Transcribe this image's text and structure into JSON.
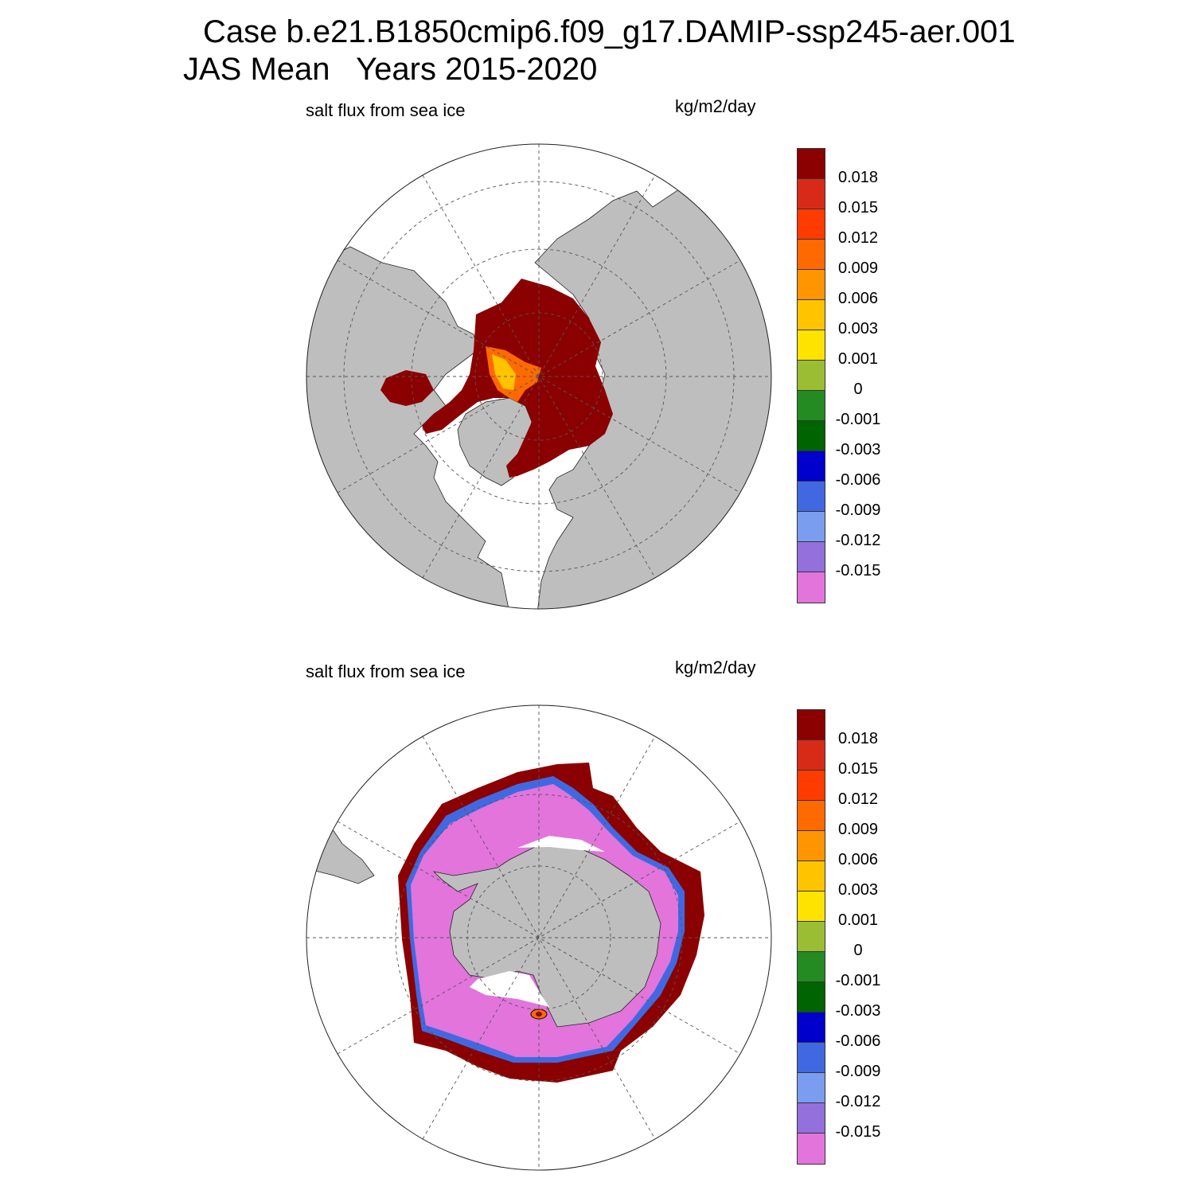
{
  "figure": {
    "title_line1": "Case b.e21.B1850cmip6.f09_g17.DAMIP-ssp245-aer.001",
    "title_line2": "JAS Mean   Years 2015-2020"
  },
  "panels": [
    {
      "id": "north",
      "title": "salt flux from sea ice",
      "units": "kg/m2/day",
      "hemisphere": "north"
    },
    {
      "id": "south",
      "title": "salt flux from sea ice",
      "units": "kg/m2/day",
      "hemisphere": "south"
    }
  ],
  "colorbar": {
    "colors": [
      "#8b0000",
      "#d82b17",
      "#ff3c00",
      "#ff6a00",
      "#ff9500",
      "#ffc300",
      "#ffe300",
      "#9bbd33",
      "#238b22",
      "#006400",
      "#0000cd",
      "#4069e1",
      "#7b9def",
      "#9370db",
      "#e274dc"
    ],
    "labels": [
      "0.018",
      "0.015",
      "0.012",
      "0.009",
      "0.006",
      "0.003",
      "0.001",
      "0",
      "-0.001",
      "-0.003",
      "-0.006",
      "-0.009",
      "-0.012",
      "-0.015"
    ]
  },
  "palette": {
    "land": "#bebebe",
    "ocean": "#ffffff",
    "ice_high": "#8b0000",
    "ice_low": "#e274dc"
  }
}
